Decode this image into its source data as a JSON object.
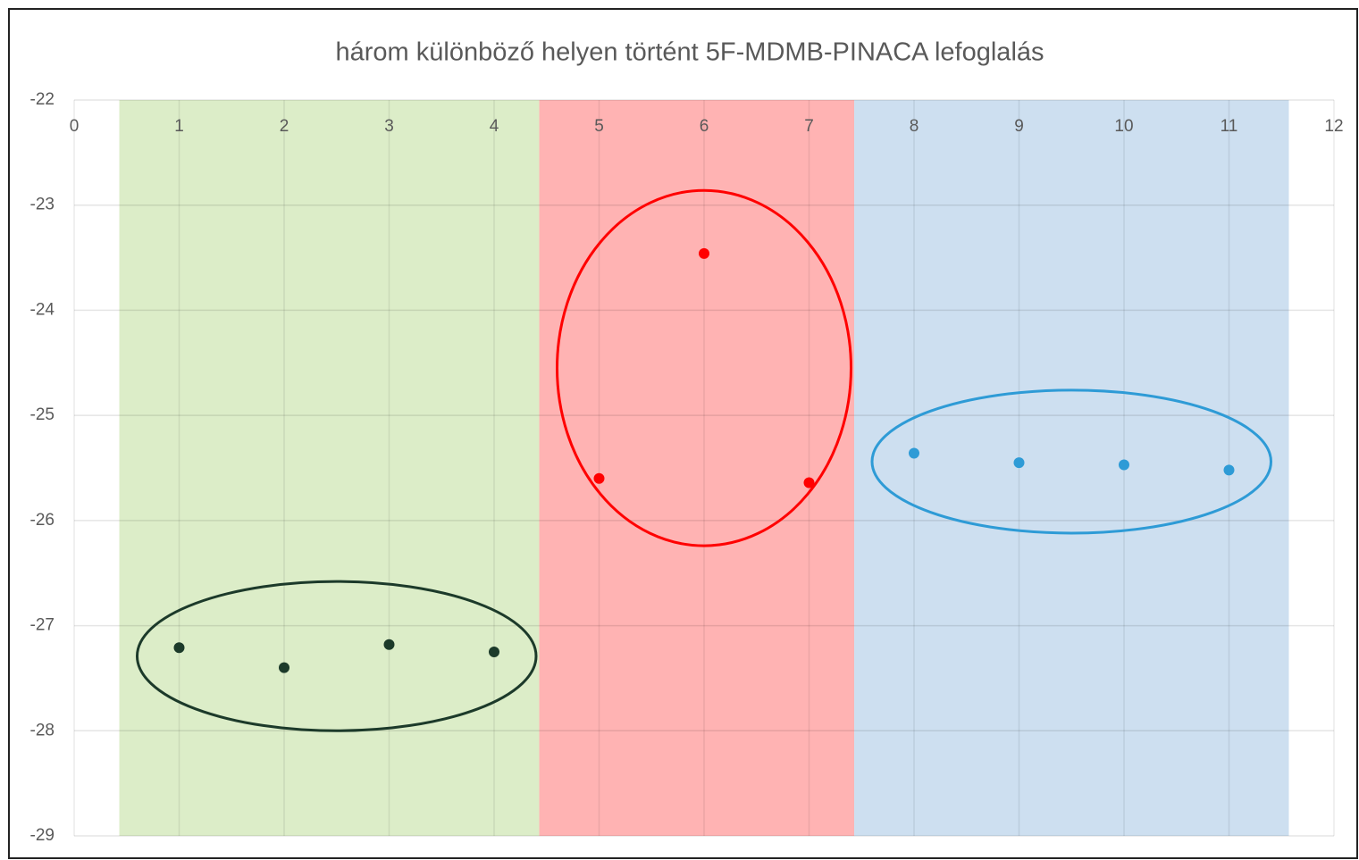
{
  "chart_data": {
    "type": "scatter",
    "title": "három különböző helyen történt 5F-MDMB-PINACA  lefoglalás",
    "series": [
      {
        "color": "#1c3a2a",
        "band": "#dcedc8",
        "x": [
          1,
          2,
          3,
          4
        ],
        "values": [
          -27.21,
          -27.4,
          -27.18,
          -27.25
        ]
      },
      {
        "color": "#ff0000",
        "band": "#ffb3b3",
        "x": [
          5,
          6,
          7
        ],
        "values": [
          -25.6,
          -23.46,
          -25.64
        ]
      },
      {
        "color": "#2e9bd6",
        "band": "#cddff0",
        "x": [
          8,
          9,
          10,
          11
        ],
        "values": [
          -25.36,
          -25.45,
          -25.47,
          -25.52
        ]
      }
    ],
    "xlim": [
      0,
      12
    ],
    "xticks": [
      0,
      1,
      2,
      3,
      4,
      5,
      6,
      7,
      8,
      9,
      10,
      11,
      12
    ],
    "ylim": [
      -29,
      -22
    ],
    "yticks": [
      -22,
      -23,
      -24,
      -25,
      -26,
      -27,
      -28,
      -29
    ],
    "grid": true
  }
}
